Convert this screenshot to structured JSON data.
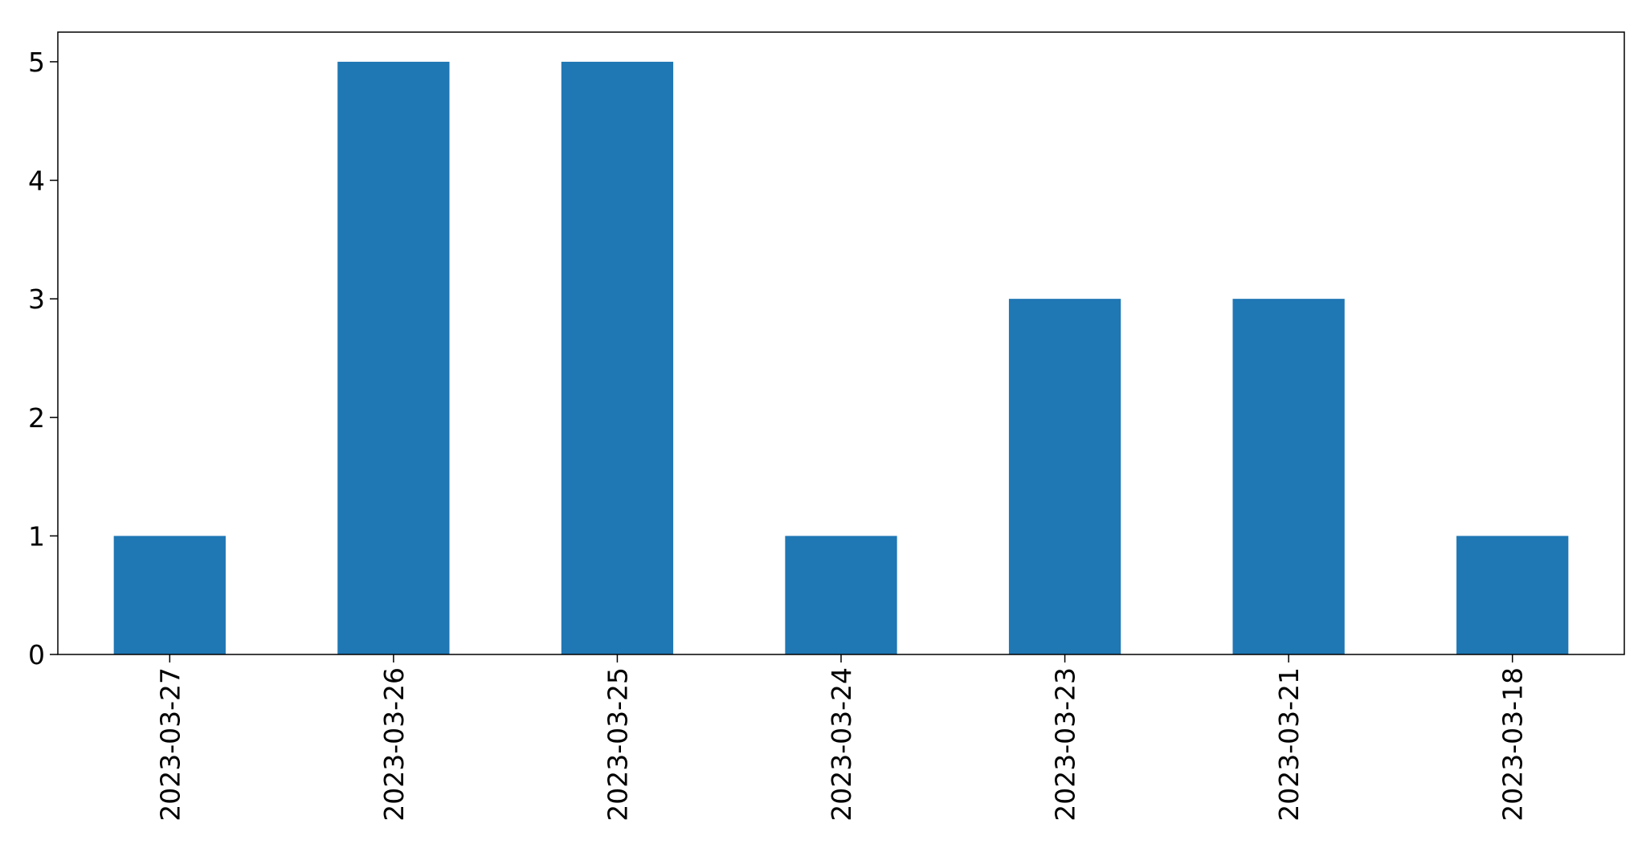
{
  "chart_data": {
    "type": "bar",
    "categories": [
      "2023-03-27",
      "2023-03-26",
      "2023-03-25",
      "2023-03-24",
      "2023-03-23",
      "2023-03-21",
      "2023-03-18"
    ],
    "values": [
      1,
      5,
      5,
      1,
      3,
      3,
      1
    ],
    "ylim": [
      0,
      5.25
    ],
    "yticks": [
      0,
      1,
      2,
      3,
      4,
      5
    ],
    "bar_color": "#1f77b4",
    "grid": false,
    "legend": "none"
  }
}
